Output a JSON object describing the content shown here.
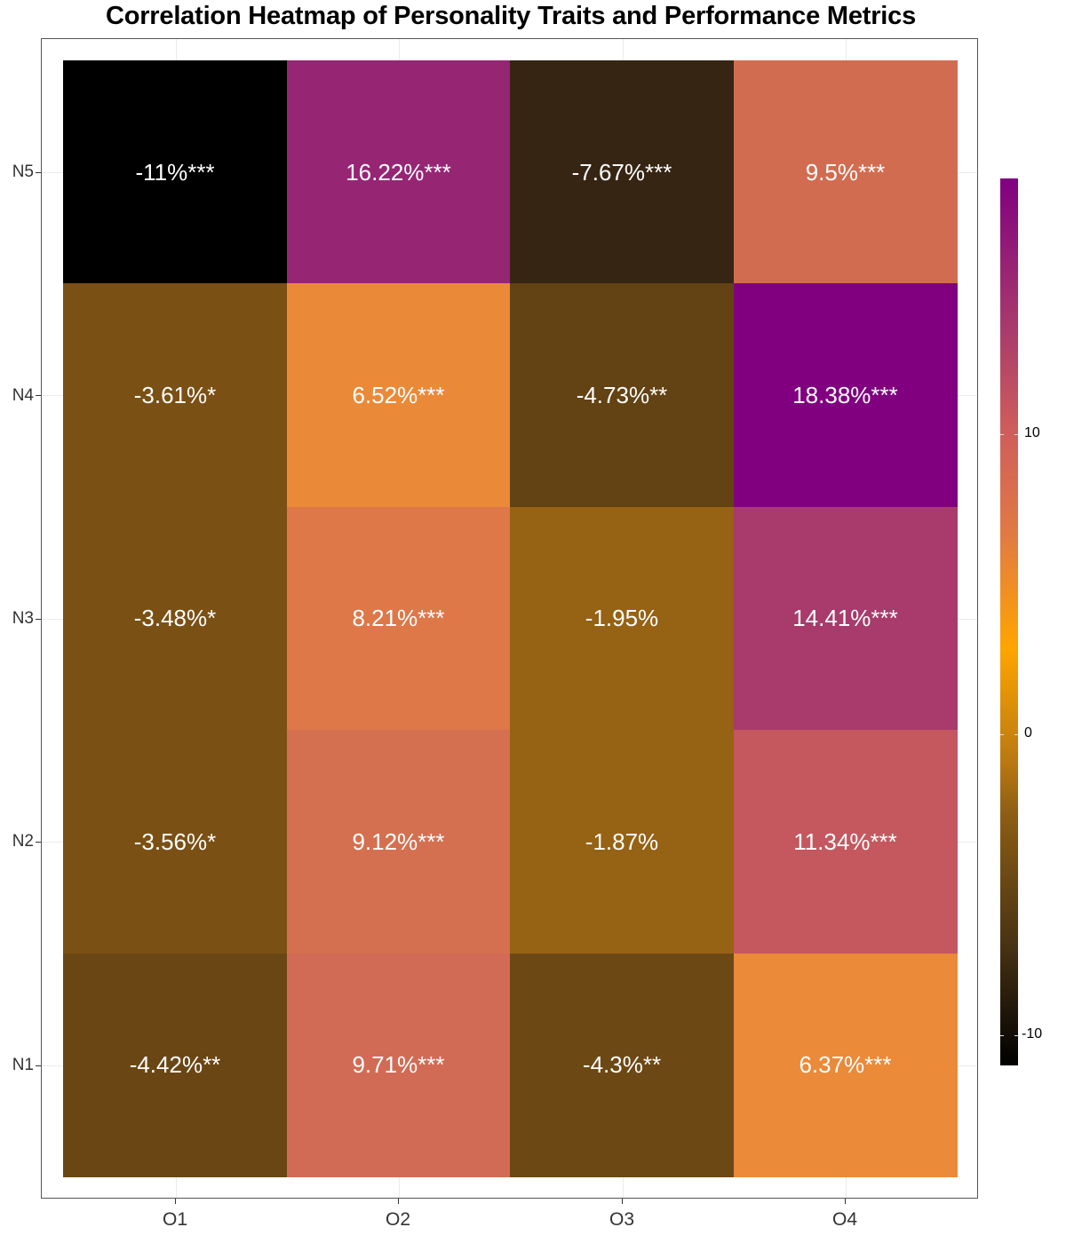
{
  "title": "Correlation Heatmap of Personality Traits and Performance Metrics",
  "chart_data": {
    "type": "heatmap",
    "title": "Correlation Heatmap of Personality Traits and Performance Metrics",
    "xlabel": "",
    "ylabel": "",
    "x_categories": [
      "O1",
      "O2",
      "O3",
      "O4"
    ],
    "y_categories": [
      "N1",
      "N2",
      "N3",
      "N4",
      "N5"
    ],
    "values": {
      "N5": [
        -11.0,
        16.22,
        -7.67,
        9.5
      ],
      "N4": [
        -3.61,
        6.52,
        -4.73,
        18.38
      ],
      "N3": [
        -3.48,
        8.21,
        -1.95,
        14.41
      ],
      "N2": [
        -3.56,
        9.12,
        -1.87,
        11.34
      ],
      "N1": [
        -4.42,
        9.71,
        -4.3,
        6.37
      ]
    },
    "labels": {
      "N5": [
        "-11%***",
        "16.22%***",
        "-7.67%***",
        "9.5%***"
      ],
      "N4": [
        "-3.61%*",
        "6.52%***",
        "-4.73%**",
        "18.38%***"
      ],
      "N3": [
        "-3.48%*",
        "8.21%***",
        "-1.95%",
        "14.41%***"
      ],
      "N2": [
        "-3.56%*",
        "9.12%***",
        "-1.87%",
        "11.34%***"
      ],
      "N1": [
        "-4.42%**",
        "9.71%***",
        "-4.3%**",
        "6.37%***"
      ]
    },
    "colors": {
      "N5": [
        "#000000",
        "#962574",
        "#372514",
        "#d26c50"
      ],
      "N4": [
        "#7a5014",
        "#ea8a38",
        "#634214",
        "#800080"
      ],
      "N3": [
        "#7a5014",
        "#de7848",
        "#966214",
        "#a83b6c"
      ],
      "N2": [
        "#7a5014",
        "#d4704f",
        "#966214",
        "#c4585e"
      ],
      "N1": [
        "#6a4614",
        "#d26b55",
        "#6c4814",
        "#eb8a38"
      ]
    },
    "legend": {
      "position": "right",
      "ticks": [
        "10",
        "0",
        "-10"
      ],
      "range": [
        -11,
        18.38
      ],
      "gradient": [
        "#000000",
        "#8b5c14",
        "#ffa500",
        "#cd5c5c",
        "#800080"
      ]
    },
    "grid": true
  },
  "axes": {
    "y_ticks": [
      "N5",
      "N4",
      "N3",
      "N2",
      "N1"
    ],
    "x_ticks": [
      "O1",
      "O2",
      "O3",
      "O4"
    ]
  },
  "rows": [
    {
      "name": "N5",
      "cells": [
        {
          "label": "-11%***",
          "color": "#000000"
        },
        {
          "label": "16.22%***",
          "color": "#962574"
        },
        {
          "label": "-7.67%***",
          "color": "#372514"
        },
        {
          "label": "9.5%***",
          "color": "#d26c50"
        }
      ]
    },
    {
      "name": "N4",
      "cells": [
        {
          "label": "-3.61%*",
          "color": "#7a5014"
        },
        {
          "label": "6.52%***",
          "color": "#ea8a38"
        },
        {
          "label": "-4.73%**",
          "color": "#634214"
        },
        {
          "label": "18.38%***",
          "color": "#800080"
        }
      ]
    },
    {
      "name": "N3",
      "cells": [
        {
          "label": "-3.48%*",
          "color": "#7a5014"
        },
        {
          "label": "8.21%***",
          "color": "#de7848"
        },
        {
          "label": "-1.95%",
          "color": "#966214"
        },
        {
          "label": "14.41%***",
          "color": "#a83b6c"
        }
      ]
    },
    {
      "name": "N2",
      "cells": [
        {
          "label": "-3.56%*",
          "color": "#7a5014"
        },
        {
          "label": "9.12%***",
          "color": "#d4704f"
        },
        {
          "label": "-1.87%",
          "color": "#966214"
        },
        {
          "label": "11.34%***",
          "color": "#c4585e"
        }
      ]
    },
    {
      "name": "N1",
      "cells": [
        {
          "label": "-4.42%**",
          "color": "#6a4614"
        },
        {
          "label": "9.71%***",
          "color": "#d26b55"
        },
        {
          "label": "-4.3%**",
          "color": "#6c4814"
        },
        {
          "label": "6.37%***",
          "color": "#eb8a38"
        }
      ]
    }
  ],
  "colorbar": {
    "ticks": [
      {
        "label": "10",
        "y": 489
      },
      {
        "label": "0",
        "y": 827
      },
      {
        "label": "-10",
        "y": 1166
      }
    ]
  }
}
